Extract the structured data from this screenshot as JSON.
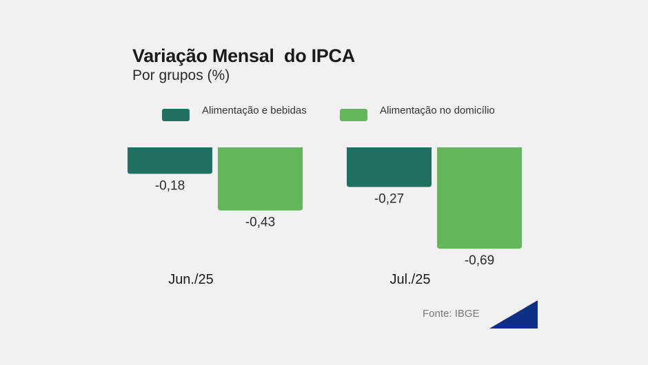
{
  "header": {
    "title": "Variação Mensal  do IPCA",
    "subtitle": "Por grupos (%)"
  },
  "legend": [
    {
      "label": "Alimentação e bebidas",
      "color": "#1f7060"
    },
    {
      "label": "Alimentação no domicílio",
      "color": "#63b75a"
    }
  ],
  "source": "Fonte: IBGE",
  "colors": {
    "accent_corner": "#0e2f86"
  },
  "chart_data": {
    "type": "bar",
    "categories": [
      "Jun./25",
      "Jul./25"
    ],
    "series": [
      {
        "name": "Alimentação e bebidas",
        "values": [
          -0.18,
          -0.27
        ],
        "labels": [
          "-0,18",
          "-0,27"
        ],
        "color": "#1f7060"
      },
      {
        "name": "Alimentação no domicílio",
        "values": [
          -0.43,
          -0.69
        ],
        "labels": [
          "-0,43",
          "-0,69"
        ],
        "color": "#63b75a"
      }
    ],
    "ylim": [
      -0.69,
      0
    ],
    "grid": false,
    "legend_position": "top"
  }
}
